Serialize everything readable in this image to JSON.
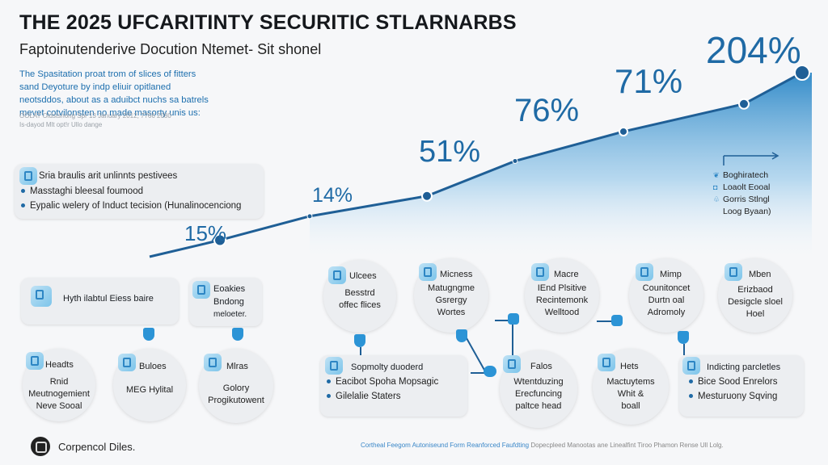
{
  "header": {
    "title": "THE 2025 UFCARITINTY SECURITIC STLARNARBS",
    "subtitle": "Faptoinutenderive Docution Ntemet- Sit shonel",
    "description": "The Spasitation proat trom of slices of fitters sand Deyoture by indp eliuir opitlaned neotsddos, about as a aduibct nuchs sa batrels mevet cotvilonsten no made masorty unis us:",
    "meta_line1": "OOLAT Oldstsnong Spr 13 January 2012, 7766 2080",
    "meta_line2": "Is-dayod Mlt opt!r Ullo dange"
  },
  "chart_data": {
    "type": "line",
    "title": "",
    "xlabel": "",
    "ylabel": "",
    "grid": false,
    "fill": "area-gradient",
    "points": [
      {
        "label": "",
        "y": 0.0
      },
      {
        "label": "15%",
        "y": 0.09
      },
      {
        "label": "",
        "y": 0.22
      },
      {
        "label": "14%",
        "y": 0.33
      },
      {
        "label": "",
        "y": 0.52
      },
      {
        "label": "51%",
        "y": 0.68
      },
      {
        "label": "76%",
        "y": 0.83
      },
      {
        "label": "71%",
        "y": 1.0
      }
    ],
    "annotations": [
      "15%",
      "14%",
      "51%",
      "76%",
      "71%",
      "204%"
    ],
    "legend_placement": "right",
    "colors": {
      "line": "#1f5f96",
      "fill_top": "#2a86c6",
      "fill_bottom": "#ffffff",
      "label": "#1f6aa5"
    }
  },
  "callout": {
    "heading": "Sria braulis arit unlinnts pestivees",
    "bullets": [
      "Masstaghi bleesal foumood",
      "Eypalic welery of Induct tecision (Hunalinocenciong"
    ]
  },
  "legend": {
    "items": [
      "Boghiratech",
      "Loaolt Eooal",
      "Gorris Stlngl",
      "Loog Byaan)"
    ]
  },
  "left_flow": {
    "top_box": "Hyth ilabtul Eiess baire",
    "side_box": [
      "Eoakies",
      "Bndong",
      "meloeter."
    ],
    "circles": [
      {
        "head": "Headts",
        "body": [
          "Rnid",
          "Meutnogemient",
          "Neve Sooal"
        ]
      },
      {
        "head": "Buloes",
        "body": [
          "MEG Hylital"
        ]
      },
      {
        "head": "Mlras",
        "body": [
          "Golory",
          "Progikutowent"
        ]
      }
    ]
  },
  "right_flow": {
    "circles_top": [
      {
        "head": "Ulcees",
        "body": [
          "Besstrd",
          "offec flices"
        ]
      },
      {
        "head": "Micness",
        "body": [
          "Matugngme",
          "Gsrergy",
          "Wortes"
        ]
      },
      {
        "head": "Macre",
        "body": [
          "IEnd Plsitive",
          "Recintemonk",
          "Welltood"
        ]
      },
      {
        "head": "Mimp",
        "body": [
          "Counitoncet",
          "Durtn oal",
          "Adromoly"
        ]
      },
      {
        "head": "Mben",
        "body": [
          "Erizbaod",
          "Desigcle sloel",
          "Hoel"
        ]
      }
    ],
    "box_left": {
      "head": "Sopmolty duoderd",
      "bullets": [
        "Eacibot Spoha Mopsagic",
        "Gilelalie Staters"
      ]
    },
    "circle_mid": {
      "head": "Falos",
      "body": [
        "Wtentduzing",
        "Erecfuncing",
        "paltce head"
      ]
    },
    "circle_mid2": {
      "head": "Hets",
      "body": [
        "Mactuytems",
        "Whit &",
        "boall"
      ]
    },
    "box_right": {
      "head": "Indicting parcletles",
      "bullets": [
        "Bice Sood Enrelors",
        "Mesturuony Sqving"
      ]
    }
  },
  "footer": {
    "brand": "Corpencol Diles.",
    "link": "Cortheal Feegom Autoniseund Form Reanforced Faufdting",
    "text": "Dopecpleed Manootas ane Linealfint Tiroo Phamon Rense Ull Lolg."
  }
}
